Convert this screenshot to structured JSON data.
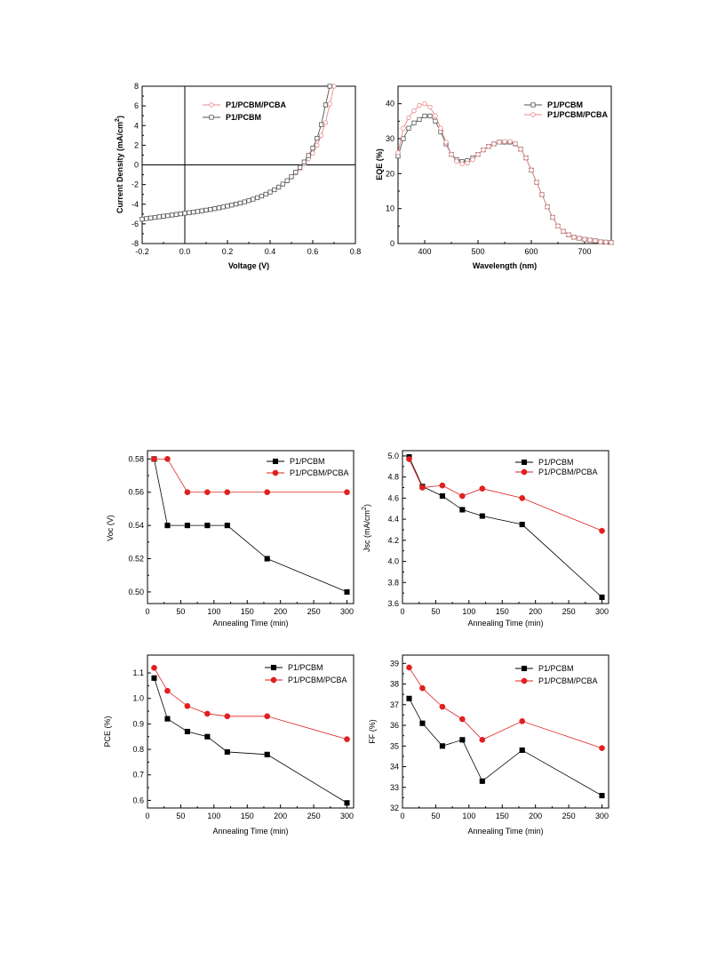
{
  "chart_data": [
    {
      "id": "jv",
      "type": "line",
      "xlabel": "Voltage (V)",
      "ylabel": "Current Density (mA/cm",
      "ylabel_sup": "2",
      "ylabel_tail": ")",
      "xlim": [
        -0.2,
        0.8
      ],
      "ylim": [
        -8,
        8
      ],
      "xticks": [
        -0.2,
        0.0,
        0.2,
        0.4,
        0.6,
        0.8
      ],
      "xtick_labels": [
        "-0.2",
        "0.0",
        "0.2",
        "0.4",
        "0.6",
        "0.8"
      ],
      "yticks": [
        -8,
        -6,
        -4,
        -2,
        0,
        2,
        4,
        6,
        8
      ],
      "ytick_labels": [
        "-8",
        "-6",
        "-4",
        "-2",
        "0",
        "2",
        "4",
        "6",
        "8"
      ],
      "legend_position": "top-left",
      "marker": "open",
      "series": [
        {
          "name": "P1/PCBM/PCBA",
          "color": "#e88a8a",
          "x": [
            -0.2,
            -0.18,
            -0.16,
            -0.14,
            -0.12,
            -0.1,
            -0.08,
            -0.06,
            -0.04,
            -0.02,
            0.0,
            0.02,
            0.04,
            0.06,
            0.08,
            0.1,
            0.12,
            0.14,
            0.16,
            0.18,
            0.2,
            0.22,
            0.24,
            0.26,
            0.28,
            0.3,
            0.32,
            0.34,
            0.36,
            0.38,
            0.4,
            0.42,
            0.44,
            0.46,
            0.48,
            0.5,
            0.52,
            0.54,
            0.56,
            0.58,
            0.6,
            0.62,
            0.64,
            0.66,
            0.68,
            0.7
          ],
          "y": [
            -5.5,
            -5.45,
            -5.4,
            -5.34,
            -5.28,
            -5.22,
            -5.16,
            -5.1,
            -5.04,
            -4.98,
            -4.92,
            -4.86,
            -4.8,
            -4.74,
            -4.67,
            -4.6,
            -4.53,
            -4.45,
            -4.37,
            -4.28,
            -4.19,
            -4.09,
            -3.99,
            -3.88,
            -3.76,
            -3.63,
            -3.49,
            -3.34,
            -3.17,
            -2.98,
            -2.77,
            -2.53,
            -2.26,
            -1.96,
            -1.62,
            -1.24,
            -0.82,
            -0.38,
            0.1,
            0.62,
            1.2,
            2.0,
            3.0,
            4.3,
            6.2,
            8.0
          ]
        },
        {
          "name": "P1/PCBM",
          "color": "#555555",
          "x": [
            -0.2,
            -0.18,
            -0.16,
            -0.14,
            -0.12,
            -0.1,
            -0.08,
            -0.06,
            -0.04,
            -0.02,
            0.0,
            0.02,
            0.04,
            0.06,
            0.08,
            0.1,
            0.12,
            0.14,
            0.16,
            0.18,
            0.2,
            0.22,
            0.24,
            0.26,
            0.28,
            0.3,
            0.32,
            0.34,
            0.36,
            0.38,
            0.4,
            0.42,
            0.44,
            0.46,
            0.48,
            0.5,
            0.52,
            0.54,
            0.56,
            0.58,
            0.6,
            0.62,
            0.64,
            0.66,
            0.68
          ],
          "y": [
            -5.52,
            -5.46,
            -5.4,
            -5.34,
            -5.28,
            -5.22,
            -5.16,
            -5.1,
            -5.04,
            -4.98,
            -4.92,
            -4.86,
            -4.8,
            -4.74,
            -4.67,
            -4.6,
            -4.53,
            -4.45,
            -4.37,
            -4.28,
            -4.19,
            -4.09,
            -3.99,
            -3.88,
            -3.76,
            -3.63,
            -3.49,
            -3.34,
            -3.17,
            -2.98,
            -2.77,
            -2.53,
            -2.26,
            -1.95,
            -1.6,
            -1.2,
            -0.75,
            -0.25,
            0.3,
            0.95,
            1.7,
            2.7,
            4.1,
            6.1,
            8.0
          ]
        }
      ]
    },
    {
      "id": "eqe",
      "type": "line",
      "xlabel": "Wavelength (nm)",
      "ylabel": "EQE (%)",
      "xlim": [
        350,
        750
      ],
      "ylim": [
        0,
        45
      ],
      "xticks": [
        400,
        500,
        600,
        700
      ],
      "xtick_labels": [
        "400",
        "500",
        "600",
        "700"
      ],
      "yticks": [
        0,
        10,
        20,
        30,
        40
      ],
      "ytick_labels": [
        "0",
        "10",
        "20",
        "30",
        "40"
      ],
      "legend_position": "top-right",
      "marker": "open",
      "series": [
        {
          "name": "P1/PCBM",
          "color": "#555555",
          "x": [
            350,
            360,
            370,
            380,
            390,
            400,
            410,
            420,
            430,
            440,
            450,
            460,
            470,
            480,
            490,
            500,
            510,
            520,
            530,
            540,
            550,
            560,
            570,
            580,
            590,
            600,
            610,
            620,
            630,
            640,
            650,
            660,
            670,
            680,
            690,
            700,
            710,
            720,
            730,
            740,
            750
          ],
          "y": [
            25,
            30,
            33,
            34.5,
            35.5,
            36.5,
            36.5,
            35,
            32,
            28.5,
            25.5,
            24,
            23.5,
            23.7,
            24.5,
            25.5,
            26.8,
            27.8,
            28.5,
            29,
            29,
            29,
            28.5,
            27,
            24.5,
            21,
            17.5,
            14,
            10.5,
            7.5,
            5,
            3.5,
            2.5,
            1.8,
            1.5,
            1.2,
            1,
            0.8,
            0.5,
            0.4,
            0.3
          ]
        },
        {
          "name": "P1/PCBM/PCBA",
          "color": "#e88a8a",
          "x": [
            350,
            360,
            370,
            380,
            390,
            400,
            410,
            420,
            430,
            440,
            450,
            460,
            470,
            480,
            490,
            500,
            510,
            520,
            530,
            540,
            550,
            560,
            570,
            580,
            590,
            600,
            610,
            620,
            630,
            640,
            650,
            660,
            670,
            680,
            690,
            700,
            710,
            720,
            730,
            740,
            750
          ],
          "y": [
            26,
            33,
            36,
            38,
            39.5,
            40,
            39,
            36.5,
            33,
            29,
            25.5,
            23.5,
            22.8,
            23,
            24,
            25.5,
            26.8,
            27.8,
            28.5,
            29,
            29.2,
            29.2,
            28.6,
            27,
            24.5,
            21,
            17.5,
            14,
            10.5,
            7.5,
            5,
            3.5,
            2.5,
            1.8,
            1.5,
            1.2,
            1,
            0.8,
            0.5,
            0.4,
            0.3
          ]
        }
      ]
    },
    {
      "id": "voc",
      "type": "line",
      "xlabel": "Annealing Time (min)",
      "ylabel": "Voc (V)",
      "xlim": [
        0,
        310
      ],
      "ylim": [
        0.493,
        0.585
      ],
      "xticks": [
        0,
        50,
        100,
        150,
        200,
        250,
        300
      ],
      "xtick_labels": [
        "0",
        "50",
        "100",
        "150",
        "200",
        "250",
        "300"
      ],
      "yticks": [
        0.5,
        0.52,
        0.54,
        0.56,
        0.58
      ],
      "ytick_labels": [
        "0.50",
        "0.52",
        "0.54",
        "0.56",
        "0.58"
      ],
      "legend_position": "top-right",
      "marker": "filled",
      "series": [
        {
          "name": "P1/PCBM",
          "color": "#000000",
          "marker": "square",
          "x": [
            10,
            30,
            60,
            90,
            120,
            180,
            300
          ],
          "y": [
            0.58,
            0.54,
            0.54,
            0.54,
            0.54,
            0.52,
            0.5
          ]
        },
        {
          "name": "P1/PCBM/PCBA",
          "color": "#e02020",
          "marker": "circle",
          "x": [
            10,
            30,
            60,
            90,
            120,
            180,
            300
          ],
          "y": [
            0.58,
            0.58,
            0.56,
            0.56,
            0.56,
            0.56,
            0.56
          ]
        }
      ]
    },
    {
      "id": "jsc",
      "type": "line",
      "xlabel": "Annealing Time (min)",
      "ylabel": "Jsc (mA/cm",
      "ylabel_sup": "2",
      "ylabel_tail": ")",
      "xlim": [
        0,
        310
      ],
      "ylim": [
        3.6,
        5.05
      ],
      "xticks": [
        0,
        50,
        100,
        150,
        200,
        250,
        300
      ],
      "xtick_labels": [
        "0",
        "50",
        "100",
        "150",
        "200",
        "250",
        "300"
      ],
      "yticks": [
        3.6,
        3.8,
        4.0,
        4.2,
        4.4,
        4.6,
        4.8,
        5.0
      ],
      "ytick_labels": [
        "3.6",
        "3.8",
        "4.0",
        "4.2",
        "4.4",
        "4.6",
        "4.8",
        "5.0"
      ],
      "legend_position": "top-right",
      "marker": "filled",
      "series": [
        {
          "name": "P1/PCBM",
          "color": "#000000",
          "marker": "square",
          "x": [
            10,
            30,
            60,
            90,
            120,
            180,
            300
          ],
          "y": [
            4.99,
            4.71,
            4.62,
            4.49,
            4.43,
            4.35,
            3.66
          ]
        },
        {
          "name": "P1/PCBM/PCBA",
          "color": "#e02020",
          "marker": "circle",
          "x": [
            10,
            30,
            60,
            90,
            120,
            180,
            300
          ],
          "y": [
            4.97,
            4.7,
            4.72,
            4.62,
            4.69,
            4.6,
            4.29
          ]
        }
      ]
    },
    {
      "id": "pce",
      "type": "line",
      "xlabel": "Annealing Time (min)",
      "ylabel": "PCE (%)",
      "xlim": [
        0,
        310
      ],
      "ylim": [
        0.57,
        1.17
      ],
      "xticks": [
        0,
        50,
        100,
        150,
        200,
        250,
        300
      ],
      "xtick_labels": [
        "0",
        "50",
        "100",
        "150",
        "200",
        "250",
        "300"
      ],
      "yticks": [
        0.6,
        0.7,
        0.8,
        0.9,
        1.0,
        1.1
      ],
      "ytick_labels": [
        "0.6",
        "0.7",
        "0.8",
        "0.9",
        "1.0",
        "1.1"
      ],
      "legend_position": "top-right",
      "marker": "filled",
      "series": [
        {
          "name": "P1/PCBM",
          "color": "#000000",
          "marker": "square",
          "x": [
            10,
            30,
            60,
            90,
            120,
            180,
            300
          ],
          "y": [
            1.08,
            0.92,
            0.87,
            0.85,
            0.79,
            0.78,
            0.59
          ]
        },
        {
          "name": "P1/PCBM/PCBA",
          "color": "#e02020",
          "marker": "circle",
          "x": [
            10,
            30,
            60,
            90,
            120,
            180,
            300
          ],
          "y": [
            1.12,
            1.03,
            0.97,
            0.94,
            0.93,
            0.93,
            0.84
          ]
        }
      ]
    },
    {
      "id": "ff",
      "type": "line",
      "xlabel": "Annealing Time (min)",
      "ylabel": "FF (%)",
      "xlim": [
        0,
        310
      ],
      "ylim": [
        32,
        39.4
      ],
      "xticks": [
        0,
        50,
        100,
        150,
        200,
        250,
        300
      ],
      "xtick_labels": [
        "0",
        "50",
        "100",
        "150",
        "200",
        "250",
        "300"
      ],
      "yticks": [
        32,
        33,
        34,
        35,
        36,
        37,
        38,
        39
      ],
      "ytick_labels": [
        "32",
        "33",
        "34",
        "35",
        "36",
        "37",
        "38",
        "39"
      ],
      "legend_position": "top-right",
      "marker": "filled",
      "series": [
        {
          "name": "P1/PCBM",
          "color": "#000000",
          "marker": "square",
          "x": [
            10,
            30,
            60,
            90,
            120,
            180,
            300
          ],
          "y": [
            37.3,
            36.1,
            35.0,
            35.3,
            33.3,
            34.8,
            32.6
          ]
        },
        {
          "name": "P1/PCBM/PCBA",
          "color": "#e02020",
          "marker": "circle",
          "x": [
            10,
            30,
            60,
            90,
            120,
            180,
            300
          ],
          "y": [
            38.8,
            37.8,
            36.9,
            36.3,
            35.3,
            36.2,
            34.9
          ]
        }
      ]
    }
  ]
}
